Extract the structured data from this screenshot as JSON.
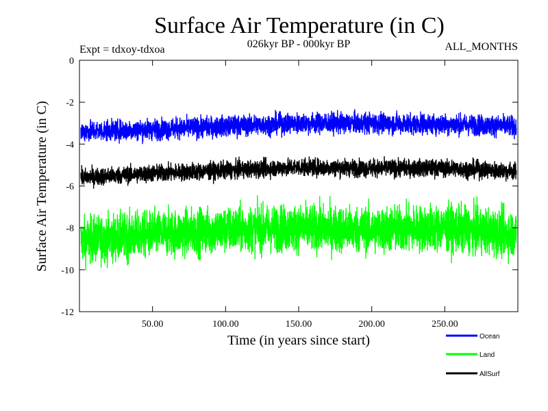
{
  "chart_data": {
    "type": "line",
    "title": "Surface Air Temperature (in C)",
    "subtitle": "026kyr BP - 000kyr BP",
    "left_annotation": "Expt = tdxoy-tdxoa",
    "right_annotation": "ALL_MONTHS",
    "xlabel": "Time (in years since start)",
    "ylabel": "Surface Air Temperature (in C)",
    "xlim": [
      0,
      300
    ],
    "ylim": [
      -12,
      0
    ],
    "x_ticks": [
      50,
      100,
      150,
      200,
      250
    ],
    "x_tick_labels": [
      "50.00",
      "100.00",
      "150.00",
      "200.00",
      "250.00"
    ],
    "y_ticks": [
      0,
      -2,
      -4,
      -6,
      -8,
      -10,
      -12
    ],
    "y_tick_labels": [
      "0",
      "-2",
      "-4",
      "-6",
      "-8",
      "-10",
      "-12"
    ],
    "grid": false,
    "legend_position": "bottom-right",
    "x_start": 1,
    "x_end": 299,
    "series": [
      {
        "name": "Ocean",
        "color": "#0000ff",
        "mean": -3.1,
        "spread": 0.45,
        "keyframes": [
          [
            0,
            -3.4
          ],
          [
            50,
            -3.3
          ],
          [
            100,
            -3.15
          ],
          [
            150,
            -3.0
          ],
          [
            200,
            -3.0
          ],
          [
            250,
            -3.05
          ],
          [
            300,
            -3.15
          ]
        ]
      },
      {
        "name": "Land",
        "color": "#00ff00",
        "mean": -8.2,
        "spread": 1.0,
        "keyframes": [
          [
            0,
            -8.6
          ],
          [
            50,
            -8.3
          ],
          [
            100,
            -8.1
          ],
          [
            150,
            -8.0
          ],
          [
            200,
            -8.1
          ],
          [
            250,
            -8.0
          ],
          [
            300,
            -8.3
          ]
        ]
      },
      {
        "name": "AllSurf",
        "color": "#000000",
        "mean": -5.3,
        "spread": 0.38,
        "keyframes": [
          [
            0,
            -5.6
          ],
          [
            50,
            -5.4
          ],
          [
            100,
            -5.25
          ],
          [
            150,
            -5.1
          ],
          [
            200,
            -5.15
          ],
          [
            250,
            -5.15
          ],
          [
            300,
            -5.3
          ]
        ]
      }
    ]
  }
}
